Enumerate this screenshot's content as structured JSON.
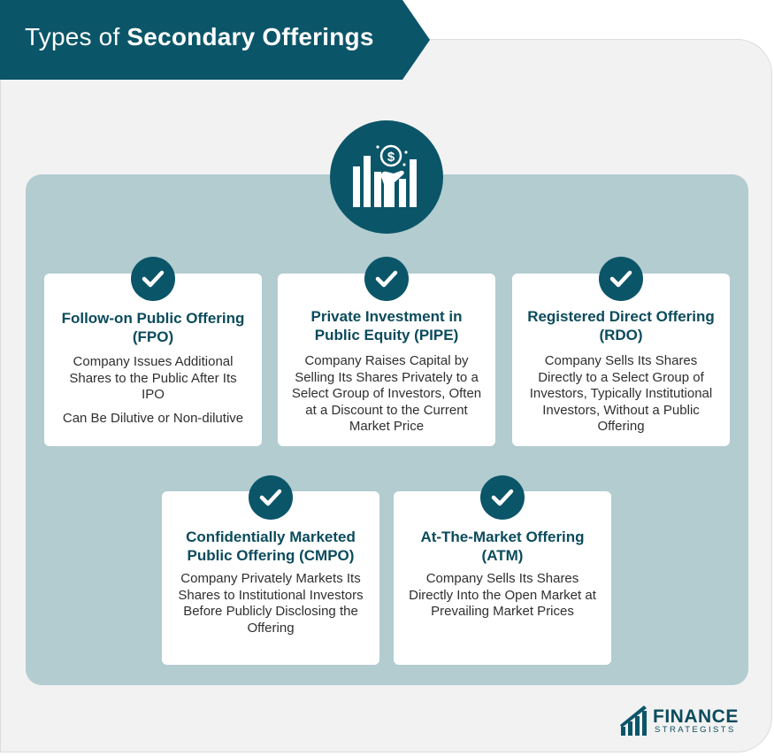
{
  "header": {
    "title_regular": "Types of ",
    "title_bold": "Secondary Offerings"
  },
  "hero_icon": "hand-coin-bar-chart-icon",
  "cards": [
    {
      "title": "Follow-on Public Offering (FPO)",
      "desc": "Company Issues Additional Shares to the Public After Its IPO",
      "desc2": "Can Be Dilutive or Non-dilutive",
      "icon": "check-icon"
    },
    {
      "title": "Private Investment in Public Equity (PIPE)",
      "desc": "Company Raises Capital by Selling Its Shares Privately to a Select Group of Investors, Often at a Discount to the Current Market Price",
      "icon": "check-icon"
    },
    {
      "title": "Registered Direct Offering (RDO)",
      "desc": "Company Sells Its Shares Directly to a Select Group of Investors, Typically Institutional Investors, Without a Public Offering",
      "icon": "check-icon"
    },
    {
      "title": "Confidentially Marketed Public Offering (CMPO)",
      "desc": "Company Privately Markets Its Shares to Institutional Investors Before Publicly Disclosing the Offering",
      "icon": "check-icon"
    },
    {
      "title": "At-The-Market Offering (ATM)",
      "desc": "Company Sells Its Shares Directly Into the Open Market at Prevailing Market Prices",
      "icon": "check-icon"
    }
  ],
  "logo": {
    "name": "FINANCE",
    "sub": "STRATEGISTS"
  },
  "colors": {
    "primary": "#0b5569",
    "panel": "#b2ccd0",
    "background": "#f2f2f2"
  }
}
